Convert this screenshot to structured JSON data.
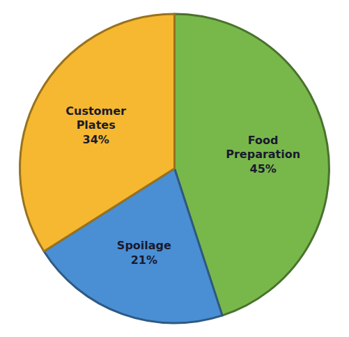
{
  "chart_data": {
    "type": "pie",
    "categories": [
      "Food\nPreparation",
      "Spoilage",
      "Customer\nPlates"
    ],
    "values": [
      45,
      21,
      34
    ],
    "value_labels": [
      "45%",
      "21%",
      "34%"
    ],
    "data_labels": true,
    "colors": [
      "#78b84a",
      "#4a8fd4",
      "#f5b830"
    ]
  }
}
